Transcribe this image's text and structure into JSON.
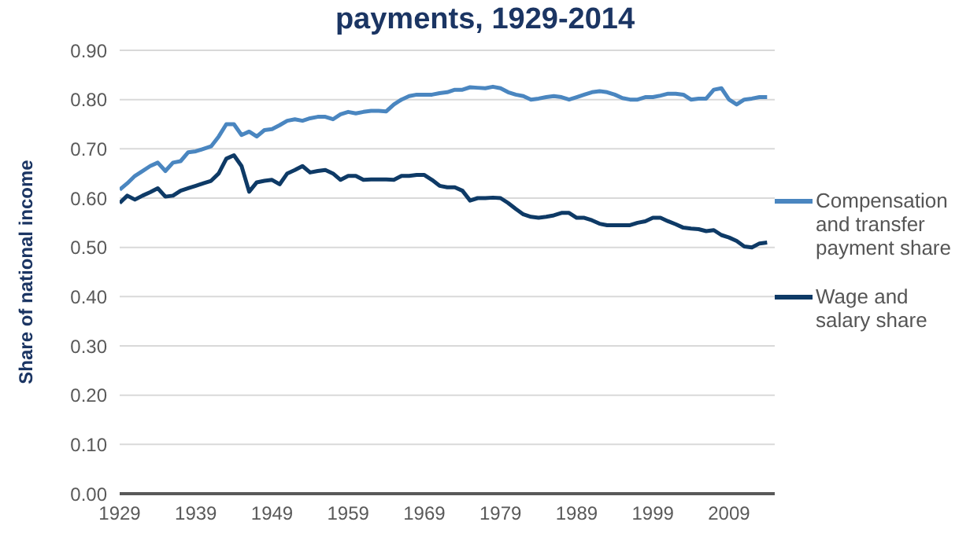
{
  "chart_data": {
    "type": "line",
    "title": "payments, 1929-2014",
    "ylabel": "Share of national income",
    "x": [
      1929,
      1930,
      1931,
      1932,
      1933,
      1934,
      1935,
      1936,
      1937,
      1938,
      1939,
      1940,
      1941,
      1942,
      1943,
      1944,
      1945,
      1946,
      1947,
      1948,
      1949,
      1950,
      1951,
      1952,
      1953,
      1954,
      1955,
      1956,
      1957,
      1958,
      1959,
      1960,
      1961,
      1962,
      1963,
      1964,
      1965,
      1966,
      1967,
      1968,
      1969,
      1970,
      1971,
      1972,
      1973,
      1974,
      1975,
      1976,
      1977,
      1978,
      1979,
      1980,
      1981,
      1982,
      1983,
      1984,
      1985,
      1986,
      1987,
      1988,
      1989,
      1990,
      1991,
      1992,
      1993,
      1994,
      1995,
      1996,
      1997,
      1998,
      1999,
      2000,
      2001,
      2002,
      2003,
      2004,
      2005,
      2006,
      2007,
      2008,
      2009,
      2010,
      2011,
      2012,
      2013,
      2014
    ],
    "series": [
      {
        "name": "Compensation and transfer payment share",
        "color": "#4a86c0",
        "values": [
          0.617,
          0.63,
          0.645,
          0.655,
          0.665,
          0.672,
          0.655,
          0.672,
          0.675,
          0.693,
          0.695,
          0.7,
          0.705,
          0.725,
          0.75,
          0.75,
          0.728,
          0.735,
          0.725,
          0.738,
          0.74,
          0.748,
          0.757,
          0.76,
          0.757,
          0.762,
          0.765,
          0.765,
          0.76,
          0.77,
          0.775,
          0.772,
          0.775,
          0.777,
          0.777,
          0.776,
          0.79,
          0.8,
          0.807,
          0.81,
          0.81,
          0.81,
          0.813,
          0.815,
          0.82,
          0.82,
          0.825,
          0.824,
          0.823,
          0.826,
          0.823,
          0.815,
          0.81,
          0.807,
          0.8,
          0.802,
          0.805,
          0.807,
          0.805,
          0.8,
          0.805,
          0.81,
          0.815,
          0.817,
          0.815,
          0.81,
          0.803,
          0.8,
          0.8,
          0.805,
          0.805,
          0.808,
          0.812,
          0.812,
          0.81,
          0.8,
          0.802,
          0.802,
          0.82,
          0.823,
          0.8,
          0.79,
          0.8,
          0.802,
          0.805,
          0.805
        ]
      },
      {
        "name": "Wage and salary share",
        "color": "#0e3a66",
        "values": [
          0.59,
          0.605,
          0.597,
          0.605,
          0.612,
          0.62,
          0.603,
          0.605,
          0.615,
          0.62,
          0.625,
          0.63,
          0.635,
          0.65,
          0.68,
          0.687,
          0.665,
          0.613,
          0.632,
          0.635,
          0.637,
          0.628,
          0.65,
          0.657,
          0.665,
          0.652,
          0.655,
          0.657,
          0.65,
          0.637,
          0.645,
          0.645,
          0.637,
          0.638,
          0.638,
          0.638,
          0.637,
          0.645,
          0.645,
          0.647,
          0.647,
          0.637,
          0.625,
          0.622,
          0.622,
          0.615,
          0.595,
          0.6,
          0.6,
          0.601,
          0.6,
          0.59,
          0.578,
          0.567,
          0.562,
          0.56,
          0.562,
          0.565,
          0.57,
          0.57,
          0.56,
          0.56,
          0.555,
          0.548,
          0.545,
          0.545,
          0.545,
          0.545,
          0.55,
          0.553,
          0.56,
          0.56,
          0.553,
          0.547,
          0.54,
          0.538,
          0.537,
          0.533,
          0.535,
          0.525,
          0.52,
          0.513,
          0.502,
          0.5,
          0.508,
          0.51
        ]
      }
    ],
    "xlim": [
      1929,
      2015
    ],
    "xticks": [
      1929,
      1939,
      1949,
      1959,
      1969,
      1979,
      1989,
      1999,
      2009
    ],
    "ylim": [
      0,
      0.9
    ],
    "yticks": [
      {
        "value": 0,
        "label": "0.00"
      },
      {
        "value": 0.1,
        "label": "0.10"
      },
      {
        "value": 0.2,
        "label": "0.20"
      },
      {
        "value": 0.3,
        "label": "0.30"
      },
      {
        "value": 0.4,
        "label": "0.40"
      },
      {
        "value": 0.5,
        "label": "0.50"
      },
      {
        "value": 0.6,
        "label": "0.60"
      },
      {
        "value": 0.7,
        "label": "0.70"
      },
      {
        "value": 0.8,
        "label": "0.80"
      },
      {
        "value": 0.9,
        "label": "0.90"
      }
    ],
    "grid": "y",
    "legend": "right",
    "marker": "none",
    "line_style": "solid"
  }
}
